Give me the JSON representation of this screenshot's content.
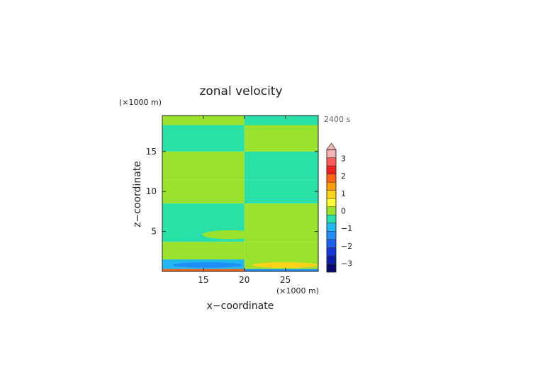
{
  "chart_data": {
    "type": "heatmap",
    "title": "zonal velocity",
    "time_label": "2400 s",
    "xlabel": "x−coordinate",
    "ylabel": "z−coordinate",
    "x_unit": "(×1000 m)",
    "y_unit": "(×1000 m)",
    "xlim": [
      10,
      29
    ],
    "ylim": [
      0,
      19.5
    ],
    "x_ticks": [
      15,
      20,
      25
    ],
    "y_ticks": [
      5,
      10,
      15
    ],
    "x_tick_labels": [
      "15",
      "20",
      "25"
    ],
    "y_tick_labels": [
      "5",
      "10",
      "15"
    ],
    "colorbar": {
      "levels": [
        -3.5,
        -3,
        -2.5,
        -2,
        -1.5,
        -1,
        -0.5,
        0,
        0.5,
        1,
        1.5,
        2,
        2.5,
        3,
        3.5
      ],
      "colors": [
        "#0a0a6e",
        "#0b1fa8",
        "#1538d8",
        "#1d60f0",
        "#1f8ff5",
        "#22b6f2",
        "#28e0a8",
        "#9be22c",
        "#ffff33",
        "#ffd21a",
        "#ff9a0a",
        "#ff6415",
        "#f02020",
        "#ff5a5a",
        "#f7b3b3"
      ],
      "extend_max_color": "#f7b3b3",
      "tick_values": [
        -3,
        -2,
        -1,
        0,
        1,
        2,
        3
      ],
      "tick_labels": [
        "−3",
        "−2",
        "−1",
        "0",
        "1",
        "2",
        "3"
      ]
    },
    "regions": [
      {
        "x": [
          10,
          20
        ],
        "z": [
          0,
          0.3
        ],
        "value": 2.0
      },
      {
        "x": [
          20,
          29
        ],
        "z": [
          0,
          0.3
        ],
        "value": -1.3
      },
      {
        "x": [
          10,
          20
        ],
        "z": [
          0.3,
          1.5
        ],
        "value": -0.6
      },
      {
        "x": [
          20,
          29
        ],
        "z": [
          0.3,
          1.5
        ],
        "value": 0.3
      },
      {
        "x": [
          10,
          20
        ],
        "z": [
          1.5,
          3.7
        ],
        "value": 0.3
      },
      {
        "x": [
          20,
          29
        ],
        "z": [
          1.5,
          3.7
        ],
        "value": 0.3
      },
      {
        "x": [
          10,
          20
        ],
        "z": [
          3.7,
          8.5
        ],
        "value": -0.25
      },
      {
        "x": [
          20,
          29
        ],
        "z": [
          3.7,
          8.5
        ],
        "value": 0.25
      },
      {
        "x": [
          10,
          20
        ],
        "z": [
          8.5,
          11.5
        ],
        "value": 0.25
      },
      {
        "x": [
          20,
          29
        ],
        "z": [
          8.5,
          11.5
        ],
        "value": -0.25
      },
      {
        "x": [
          10,
          20
        ],
        "z": [
          11.5,
          15
        ],
        "value": 0.25
      },
      {
        "x": [
          20,
          29
        ],
        "z": [
          11.5,
          15
        ],
        "value": -0.25
      },
      {
        "x": [
          10,
          20
        ],
        "z": [
          15,
          18.3
        ],
        "value": -0.25
      },
      {
        "x": [
          20,
          29
        ],
        "z": [
          15,
          18.3
        ],
        "value": 0.25
      },
      {
        "x": [
          10,
          20
        ],
        "z": [
          18.3,
          19.5
        ],
        "value": 0.25
      },
      {
        "x": [
          20,
          29
        ],
        "z": [
          18.3,
          19.5
        ],
        "value": -0.25
      }
    ],
    "features": [
      {
        "shape": "ellipse",
        "cx": 18.2,
        "cz": 4.6,
        "rx": 3.3,
        "rz": 0.55,
        "value": 0.25
      },
      {
        "shape": "ellipse",
        "cx": 15.5,
        "cz": 0.8,
        "rx": 4.2,
        "rz": 0.35,
        "value": -1.2
      },
      {
        "shape": "ellipse",
        "cx": 25.0,
        "cz": 0.8,
        "rx": 4.0,
        "rz": 0.35,
        "value": 1.1
      }
    ]
  }
}
